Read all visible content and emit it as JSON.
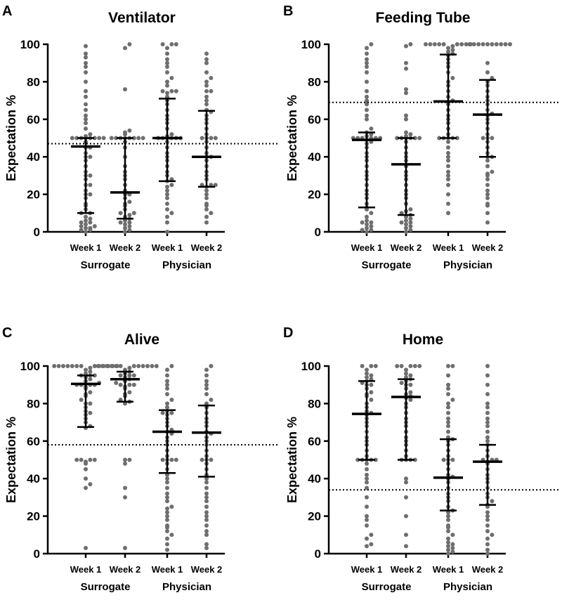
{
  "chart_data": [
    {
      "panel_letter": "A",
      "type": "scatter",
      "title": "Ventilator",
      "ylabel": "Expectation %",
      "ylim": [
        0,
        100
      ],
      "yticks": [
        "0",
        "20",
        "40",
        "60",
        "80",
        "100"
      ],
      "groups": [
        "Surrogate",
        "Physician"
      ],
      "categories": [
        "Week 1",
        "Week 2",
        "Week 1",
        "Week 2"
      ],
      "reference_line": 47,
      "series": [
        {
          "group": "Surrogate",
          "week": "Week 1",
          "median": 45.5,
          "q1": 10,
          "q3": 50,
          "points": [
            0,
            1,
            1,
            2,
            2,
            3,
            3,
            4,
            5,
            5,
            6,
            7,
            8,
            10,
            10,
            12,
            14,
            15,
            18,
            20,
            20,
            22,
            25,
            25,
            28,
            30,
            30,
            32,
            35,
            38,
            40,
            40,
            42,
            45,
            45,
            48,
            50,
            50,
            50,
            50,
            50,
            50,
            50,
            50,
            51,
            52,
            55,
            58,
            60,
            62,
            65,
            68,
            72,
            75,
            80,
            85,
            88,
            90,
            93,
            95,
            99
          ]
        },
        {
          "group": "Surrogate",
          "week": "Week 2",
          "median": 21,
          "q1": 7,
          "q3": 50,
          "points": [
            0,
            1,
            2,
            3,
            4,
            5,
            5,
            6,
            7,
            8,
            9,
            10,
            10,
            12,
            14,
            15,
            16,
            18,
            20,
            20,
            22,
            25,
            28,
            30,
            32,
            35,
            40,
            45,
            48,
            50,
            50,
            50,
            50,
            50,
            50,
            50,
            50,
            52,
            53,
            54,
            76,
            98,
            100
          ]
        },
        {
          "group": "Physician",
          "week": "Week 1",
          "median": 50,
          "q1": 27,
          "q3": 71,
          "points": [
            0,
            5,
            8,
            10,
            12,
            15,
            18,
            20,
            22,
            24,
            25,
            27,
            28,
            30,
            32,
            35,
            38,
            40,
            42,
            45,
            48,
            50,
            50,
            50,
            50,
            50,
            50,
            51,
            52,
            55,
            58,
            60,
            62,
            65,
            68,
            70,
            72,
            74,
            75,
            75,
            75,
            78,
            80,
            82,
            85,
            88,
            90,
            92,
            95,
            98,
            100,
            100,
            100
          ]
        },
        {
          "group": "Physician",
          "week": "Week 2",
          "median": 40,
          "q1": 24,
          "q3": 64.5,
          "points": [
            5,
            8,
            10,
            12,
            14,
            15,
            18,
            20,
            22,
            24,
            25,
            25,
            25,
            28,
            30,
            32,
            35,
            38,
            40,
            40,
            42,
            45,
            48,
            50,
            50,
            50,
            50,
            52,
            55,
            58,
            60,
            62,
            64,
            65,
            68,
            70,
            72,
            75,
            75,
            78,
            80,
            82,
            85,
            90,
            92,
            95
          ]
        }
      ]
    },
    {
      "panel_letter": "B",
      "type": "scatter",
      "title": "Feeding Tube",
      "ylabel": "Expectation %",
      "ylim": [
        0,
        100
      ],
      "yticks": [
        "0",
        "20",
        "40",
        "60",
        "80",
        "100"
      ],
      "groups": [
        "Surrogate",
        "Physician"
      ],
      "categories": [
        "Week 1",
        "Week 2",
        "Week 1",
        "Week 2"
      ],
      "reference_line": 69,
      "series": [
        {
          "group": "Surrogate",
          "week": "Week 1",
          "median": 49,
          "q1": 13,
          "q3": 53,
          "points": [
            0,
            1,
            1,
            2,
            3,
            4,
            5,
            5,
            6,
            8,
            10,
            12,
            13,
            15,
            18,
            20,
            22,
            25,
            28,
            30,
            32,
            35,
            38,
            40,
            42,
            45,
            47,
            48,
            49,
            50,
            50,
            50,
            50,
            50,
            50,
            51,
            52,
            53,
            55,
            60,
            62,
            65,
            68,
            70,
            72,
            75,
            80,
            85,
            88,
            90,
            92,
            95,
            98,
            100
          ]
        },
        {
          "group": "Surrogate",
          "week": "Week 2",
          "median": 36,
          "q1": 9,
          "q3": 50,
          "points": [
            0,
            1,
            2,
            3,
            4,
            5,
            5,
            6,
            7,
            8,
            9,
            10,
            11,
            12,
            15,
            18,
            20,
            22,
            25,
            28,
            30,
            32,
            35,
            38,
            40,
            42,
            45,
            48,
            50,
            50,
            50,
            50,
            50,
            50,
            51,
            52,
            53,
            60,
            62,
            74,
            76,
            87,
            90,
            99,
            100
          ]
        },
        {
          "group": "Physician",
          "week": "Week 1",
          "median": 69.5,
          "q1": 50,
          "q3": 94.5,
          "points": [
            10,
            15,
            20,
            25,
            28,
            30,
            32,
            35,
            38,
            40,
            42,
            45,
            48,
            50,
            50,
            50,
            50,
            50,
            52,
            55,
            58,
            60,
            62,
            65,
            68,
            69,
            70,
            72,
            75,
            78,
            80,
            82,
            85,
            88,
            90,
            92,
            94,
            95,
            96,
            97,
            98,
            99,
            100,
            100,
            100,
            100,
            100,
            100,
            100,
            100,
            100
          ]
        },
        {
          "group": "Physician",
          "week": "Week 2",
          "median": 62.5,
          "q1": 40,
          "q3": 81,
          "points": [
            5,
            10,
            14,
            15,
            18,
            20,
            22,
            25,
            28,
            30,
            31,
            32,
            35,
            38,
            40,
            40,
            42,
            45,
            48,
            50,
            50,
            50,
            52,
            55,
            58,
            60,
            62,
            63,
            65,
            68,
            70,
            72,
            75,
            78,
            80,
            82,
            85,
            90,
            100,
            100,
            100,
            100,
            100,
            100,
            100,
            100,
            100,
            100
          ]
        }
      ]
    },
    {
      "panel_letter": "C",
      "type": "scatter",
      "title": "Alive",
      "ylabel": "Expectation %",
      "ylim": [
        0,
        100
      ],
      "yticks": [
        "0",
        "20",
        "40",
        "60",
        "80",
        "100"
      ],
      "groups": [
        "Surrogate",
        "Physician"
      ],
      "categories": [
        "Week 1",
        "Week 2",
        "Week 1",
        "Week 2"
      ],
      "reference_line": 58,
      "series": [
        {
          "group": "Surrogate",
          "week": "Week 1",
          "median": 90.5,
          "q1": 67.5,
          "q3": 95,
          "points": [
            3,
            35,
            37,
            40,
            45,
            48,
            49,
            50,
            50,
            50,
            50,
            67,
            68,
            70,
            72,
            74,
            75,
            76,
            78,
            80,
            80,
            82,
            84,
            85,
            86,
            88,
            89,
            90,
            90,
            90,
            90,
            91,
            92,
            93,
            94,
            95,
            95,
            95,
            96,
            97,
            98,
            99,
            100,
            100,
            100,
            100,
            100,
            100,
            100,
            100,
            100,
            100,
            100,
            100,
            100
          ]
        },
        {
          "group": "Surrogate",
          "week": "Week 2",
          "median": 93,
          "q1": 81,
          "q3": 97,
          "points": [
            3,
            30,
            35,
            48,
            50,
            50,
            80,
            81,
            82,
            84,
            85,
            86,
            88,
            89,
            90,
            90,
            90,
            91,
            92,
            93,
            94,
            95,
            95,
            95,
            96,
            97,
            98,
            99,
            100,
            100,
            100,
            100,
            100,
            100,
            100,
            100,
            100,
            100,
            100,
            100
          ]
        },
        {
          "group": "Physician",
          "week": "Week 1",
          "median": 65,
          "q1": 43,
          "q3": 76.5,
          "points": [
            2,
            5,
            8,
            10,
            12,
            14,
            15,
            18,
            20,
            22,
            24,
            25,
            28,
            30,
            32,
            35,
            38,
            40,
            42,
            45,
            48,
            50,
            50,
            50,
            50,
            52,
            55,
            58,
            60,
            62,
            64,
            65,
            66,
            68,
            70,
            72,
            74,
            75,
            75,
            76,
            78,
            80,
            82,
            85,
            88,
            90,
            92,
            95,
            98,
            100
          ]
        },
        {
          "group": "Physician",
          "week": "Week 2",
          "median": 64.5,
          "q1": 41,
          "q3": 79,
          "points": [
            3,
            5,
            10,
            12,
            15,
            18,
            20,
            22,
            25,
            28,
            30,
            32,
            35,
            38,
            40,
            42,
            45,
            48,
            50,
            50,
            50,
            52,
            55,
            58,
            60,
            62,
            64,
            65,
            68,
            70,
            72,
            75,
            78,
            80,
            82,
            85,
            88,
            90,
            92,
            95,
            98,
            100
          ]
        }
      ]
    },
    {
      "panel_letter": "D",
      "type": "scatter",
      "title": "Home",
      "ylabel": "Expectation %",
      "ylim": [
        0,
        100
      ],
      "yticks": [
        "0",
        "20",
        "40",
        "60",
        "80",
        "100"
      ],
      "groups": [
        "Surrogate",
        "Physician"
      ],
      "categories": [
        "Week 1",
        "Week 2",
        "Week 1",
        "Week 2"
      ],
      "reference_line": 34,
      "series": [
        {
          "group": "Surrogate",
          "week": "Week 1",
          "median": 74.5,
          "q1": 50,
          "q3": 92,
          "points": [
            4,
            5,
            8,
            10,
            15,
            18,
            20,
            25,
            30,
            35,
            38,
            40,
            42,
            45,
            48,
            50,
            50,
            50,
            50,
            50,
            52,
            55,
            58,
            60,
            62,
            65,
            68,
            70,
            72,
            74,
            75,
            76,
            78,
            80,
            82,
            84,
            85,
            86,
            88,
            90,
            90,
            91,
            92,
            93,
            94,
            95,
            96,
            98,
            100,
            100,
            100
          ]
        },
        {
          "group": "Surrogate",
          "week": "Week 2",
          "median": 83.5,
          "q1": 50,
          "q3": 93,
          "points": [
            4,
            10,
            20,
            30,
            38,
            40,
            50,
            50,
            50,
            50,
            52,
            55,
            58,
            60,
            62,
            65,
            68,
            70,
            72,
            75,
            78,
            80,
            82,
            83,
            84,
            85,
            86,
            88,
            90,
            90,
            91,
            92,
            93,
            94,
            95,
            96,
            98,
            100,
            100,
            100,
            100,
            100
          ]
        },
        {
          "group": "Physician",
          "week": "Week 1",
          "median": 40.5,
          "q1": 23,
          "q3": 61,
          "points": [
            0,
            1,
            2,
            3,
            4,
            5,
            6,
            8,
            10,
            12,
            14,
            15,
            18,
            20,
            22,
            23,
            25,
            28,
            30,
            32,
            35,
            38,
            40,
            41,
            42,
            45,
            48,
            50,
            50,
            50,
            52,
            55,
            58,
            60,
            61,
            62,
            65,
            68,
            70,
            72,
            75,
            78,
            80,
            82,
            85,
            88,
            90,
            95,
            100,
            100
          ]
        },
        {
          "group": "Physician",
          "week": "Week 2",
          "median": 49,
          "q1": 26,
          "q3": 58,
          "points": [
            0,
            2,
            5,
            8,
            10,
            12,
            15,
            18,
            20,
            22,
            25,
            26,
            28,
            30,
            32,
            35,
            38,
            40,
            42,
            45,
            48,
            49,
            50,
            50,
            50,
            52,
            55,
            58,
            60,
            62,
            65,
            68,
            70,
            72,
            75,
            78,
            80,
            85,
            90,
            95,
            100
          ]
        }
      ]
    }
  ]
}
